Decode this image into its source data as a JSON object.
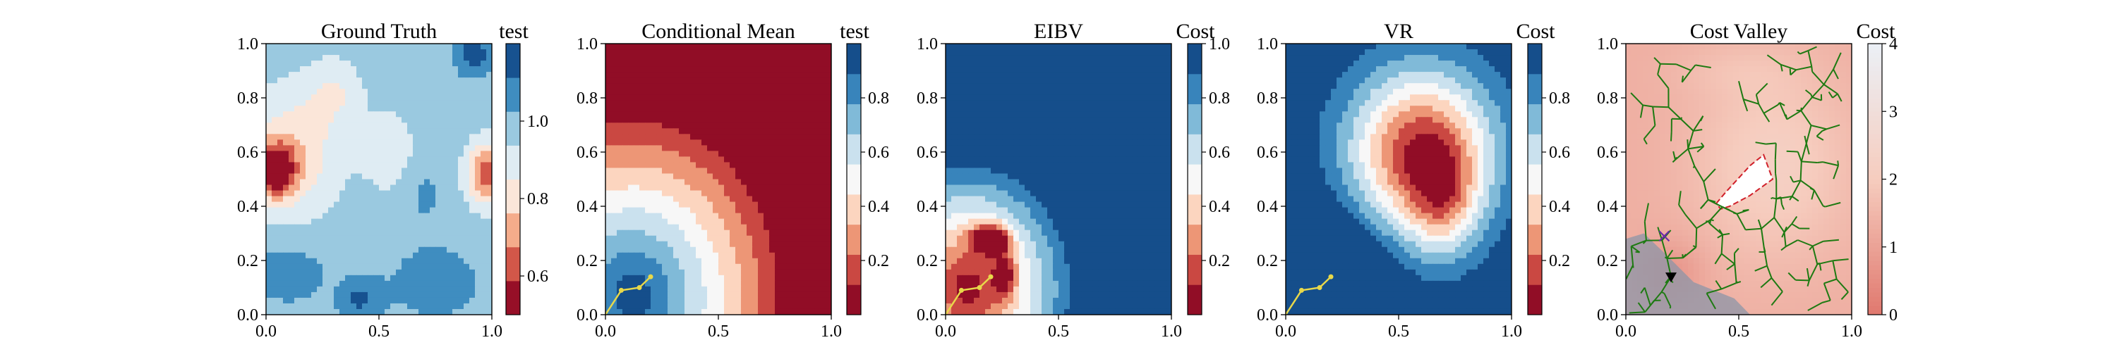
{
  "chart_data": [
    {
      "type": "heatmap",
      "title": "Ground Truth",
      "colorbar_label": "test",
      "colormap": "RdBu",
      "xlim": [
        0,
        1
      ],
      "ylim": [
        0,
        1
      ],
      "xticks": [
        "0.0",
        "0.5",
        "1.0"
      ],
      "yticks": [
        "0.0",
        "0.2",
        "0.4",
        "0.6",
        "0.8",
        "1.0"
      ],
      "colorbar_range": [
        0.5,
        1.2
      ],
      "colorbar_levels": 8,
      "colorbar_ticks": [
        {
          "value": 0.6,
          "label": "0.6"
        },
        {
          "value": 0.8,
          "label": "0.8"
        },
        {
          "value": 1.0,
          "label": "1.0"
        }
      ],
      "field": "ground_truth",
      "path": []
    },
    {
      "type": "heatmap",
      "title": "Conditional Mean",
      "colorbar_label": "test",
      "colormap": "RdBu",
      "xlim": [
        0,
        1
      ],
      "ylim": [
        0,
        1
      ],
      "xticks": [
        "0.0",
        "0.5",
        "1.0"
      ],
      "yticks": [
        "0.0",
        "0.2",
        "0.4",
        "0.6",
        "0.8",
        "1.0"
      ],
      "colorbar_range": [
        0.0,
        1.0
      ],
      "colorbar_levels": 9,
      "colorbar_ticks": [
        {
          "value": 0.2,
          "label": "0.2"
        },
        {
          "value": 0.4,
          "label": "0.4"
        },
        {
          "value": 0.6,
          "label": "0.6"
        },
        {
          "value": 0.8,
          "label": "0.8"
        }
      ],
      "field": "conditional_mean",
      "path": [
        [
          0.0,
          0.0
        ],
        [
          0.07,
          0.09
        ],
        [
          0.15,
          0.1
        ],
        [
          0.2,
          0.14
        ]
      ]
    },
    {
      "type": "heatmap",
      "title": "EIBV",
      "colorbar_label": "Cost",
      "colormap": "RdBu",
      "xlim": [
        0,
        1
      ],
      "ylim": [
        0,
        1
      ],
      "xticks": [
        "0.0",
        "0.5",
        "1.0"
      ],
      "yticks": [
        "0.0",
        "0.2",
        "0.4",
        "0.6",
        "0.8",
        "1.0"
      ],
      "colorbar_range": [
        0.0,
        1.0
      ],
      "colorbar_levels": 9,
      "colorbar_ticks": [
        {
          "value": 0.2,
          "label": "0.2"
        },
        {
          "value": 0.4,
          "label": "0.4"
        },
        {
          "value": 0.6,
          "label": "0.6"
        },
        {
          "value": 0.8,
          "label": "0.8"
        },
        {
          "value": 1.0,
          "label": "1.0"
        }
      ],
      "field": "eibv",
      "path": [
        [
          0.0,
          0.0
        ],
        [
          0.07,
          0.09
        ],
        [
          0.15,
          0.1
        ],
        [
          0.2,
          0.14
        ]
      ]
    },
    {
      "type": "heatmap",
      "title": "VR",
      "colorbar_label": "Cost",
      "colormap": "RdBu",
      "xlim": [
        0,
        1
      ],
      "ylim": [
        0,
        1
      ],
      "xticks": [
        "0.0",
        "0.5",
        "1.0"
      ],
      "yticks": [
        "0.0",
        "0.2",
        "0.4",
        "0.6",
        "0.8",
        "1.0"
      ],
      "colorbar_range": [
        0.0,
        1.0
      ],
      "colorbar_levels": 9,
      "colorbar_ticks": [
        {
          "value": 0.2,
          "label": "0.2"
        },
        {
          "value": 0.4,
          "label": "0.4"
        },
        {
          "value": 0.6,
          "label": "0.6"
        },
        {
          "value": 0.8,
          "label": "0.8"
        }
      ],
      "field": "vr",
      "path": [
        [
          0.0,
          0.0
        ],
        [
          0.07,
          0.09
        ],
        [
          0.15,
          0.1
        ],
        [
          0.2,
          0.14
        ]
      ]
    },
    {
      "type": "heatmap",
      "title": "Cost Valley",
      "colorbar_label": "Cost",
      "colormap": "Reds",
      "xlim": [
        0,
        1
      ],
      "ylim": [
        0,
        1
      ],
      "xticks": [
        "0.0",
        "0.5",
        "1.0"
      ],
      "yticks": [
        "0.0",
        "0.2",
        "0.4",
        "0.6",
        "0.8",
        "1.0"
      ],
      "colorbar_range": [
        0,
        4
      ],
      "colorbar_levels": 0,
      "colorbar_ticks": [
        {
          "value": 0,
          "label": "0"
        },
        {
          "value": 1,
          "label": "1"
        },
        {
          "value": 2,
          "label": "2"
        },
        {
          "value": 3,
          "label": "3"
        },
        {
          "value": 4,
          "label": "4"
        }
      ],
      "field": "cost_valley",
      "path": [],
      "overlay": {
        "tree_color": "#1e7a12",
        "tree_root": [
          0.2,
          0.14
        ],
        "current_marker": [
          0.2,
          0.14
        ],
        "target_marker": [
          0.17,
          0.29
        ],
        "obstacle": [
          [
            0.4,
            0.41
          ],
          [
            0.44,
            0.45
          ],
          [
            0.55,
            0.55
          ],
          [
            0.61,
            0.59
          ],
          [
            0.65,
            0.5
          ],
          [
            0.55,
            0.44
          ],
          [
            0.46,
            0.4
          ],
          [
            0.42,
            0.39
          ]
        ]
      }
    }
  ]
}
